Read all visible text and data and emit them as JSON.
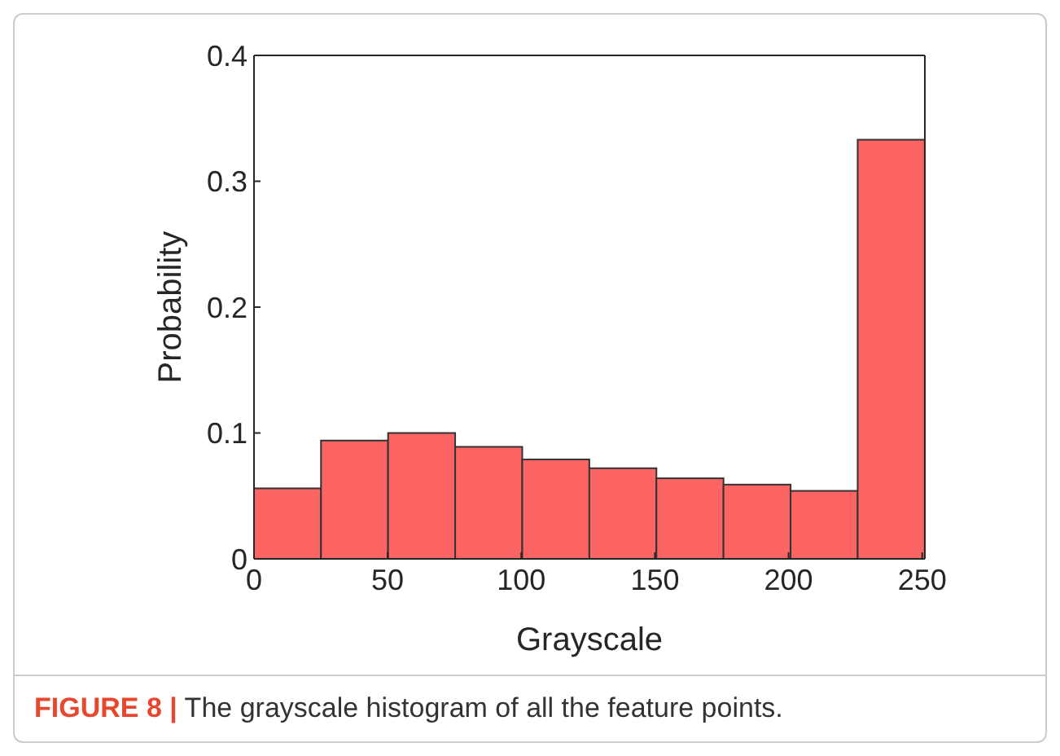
{
  "chart_data": {
    "type": "histogram",
    "xlabel": "Grayscale",
    "ylabel": "Probability",
    "bins": [
      0,
      25.1,
      50.2,
      75.3,
      100.4,
      125.5,
      150.6,
      175.7,
      200.8,
      225.9,
      251
    ],
    "values": [
      0.056,
      0.094,
      0.1,
      0.089,
      0.079,
      0.072,
      0.064,
      0.059,
      0.054,
      0.333
    ],
    "color": "#fd6464",
    "xlim": [
      0,
      251
    ],
    "xticks": [
      0,
      50,
      100,
      150,
      200,
      250
    ],
    "ylim": [
      0,
      0.4
    ],
    "yticks": [
      0,
      0.1,
      0.2,
      0.3,
      0.4
    ],
    "grid": false,
    "annotations": [
      "FIGURE 8 | The grayscale histogram of all the feature points."
    ]
  }
}
